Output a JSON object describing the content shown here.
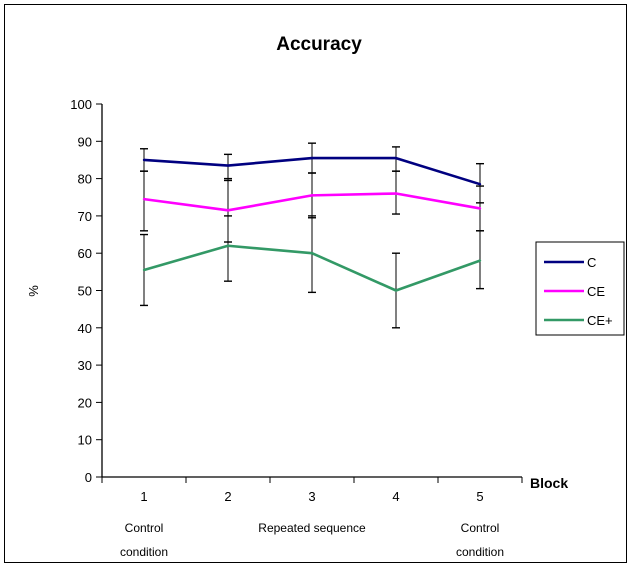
{
  "chart_data": {
    "type": "line",
    "title": "Accuracy",
    "xlabel": "Block",
    "ylabel": "%",
    "categories": [
      "1",
      "2",
      "3",
      "4",
      "5"
    ],
    "ylim": [
      0,
      100
    ],
    "yticks": [
      0,
      10,
      20,
      30,
      40,
      50,
      60,
      70,
      80,
      90,
      100
    ],
    "series": [
      {
        "name": "C",
        "color": "#000080",
        "values": [
          85,
          83.5,
          85.5,
          85.5,
          78.5
        ],
        "error_low": [
          82,
          79.5,
          81.5,
          82,
          73.5
        ],
        "error_high": [
          88,
          86.5,
          89.5,
          88.5,
          84
        ]
      },
      {
        "name": "CE",
        "color": "#ff00ff",
        "values": [
          74.5,
          71.5,
          75.5,
          76,
          72
        ],
        "error_low": [
          66,
          63,
          69.5,
          70.5,
          66
        ],
        "error_high": [
          82,
          80,
          81.5,
          82,
          78
        ]
      },
      {
        "name": "CE+",
        "color": "#339966",
        "values": [
          55.5,
          62,
          60,
          50,
          58
        ],
        "error_low": [
          46,
          52.5,
          49.5,
          40,
          50.5
        ],
        "error_high": [
          65,
          70,
          70,
          60,
          66
        ]
      }
    ],
    "annotations": [
      {
        "text": "Control",
        "category": "1",
        "row": 1
      },
      {
        "text": "condition",
        "category": "1",
        "row": 2
      },
      {
        "text": "Repeated sequence",
        "category": "3",
        "row": 1
      },
      {
        "text": "Control",
        "category": "5",
        "row": 1
      },
      {
        "text": "condition",
        "category": "5",
        "row": 2
      }
    ],
    "legend_position": "right",
    "grid": false
  }
}
